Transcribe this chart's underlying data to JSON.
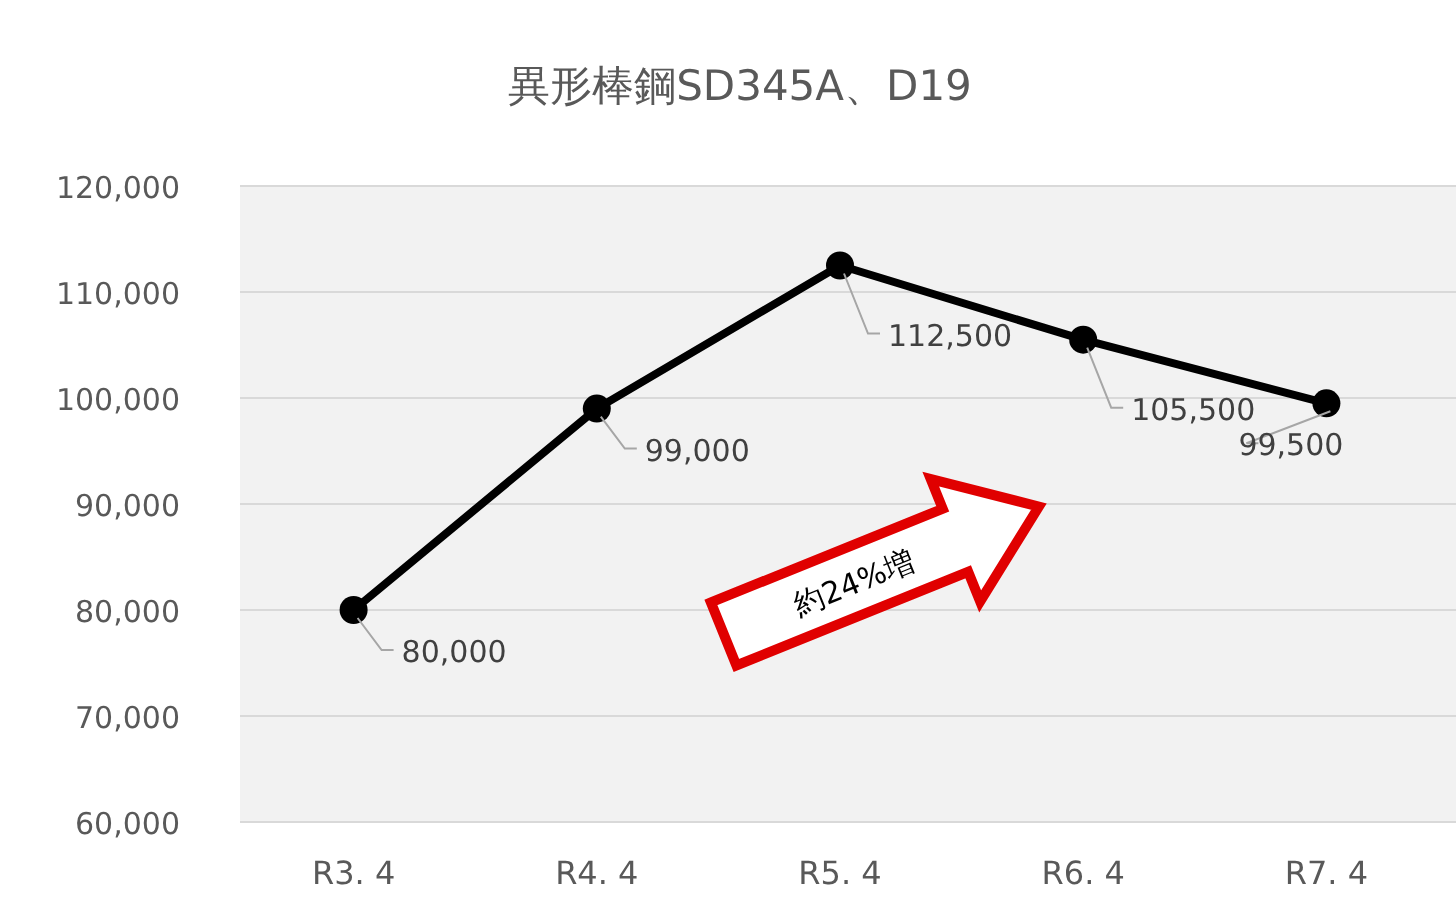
{
  "chart_data": {
    "type": "line",
    "title": "異形棒鋼SD345A、D19",
    "categories": [
      "R3. 4",
      "R4. 4",
      "R5. 4",
      "R6. 4",
      "R7. 4"
    ],
    "series": [
      {
        "color": "#000000",
        "values": [
          80000,
          99000,
          112500,
          105500,
          99500
        ],
        "value_labels": [
          "80,000",
          "99,000",
          "112,500",
          "105,500",
          "99,500"
        ]
      }
    ],
    "ylim": [
      60000,
      120000
    ],
    "yticks": [
      {
        "value": 60000,
        "label": "60,000"
      },
      {
        "value": 70000,
        "label": "70,000"
      },
      {
        "value": 80000,
        "label": "80,000"
      },
      {
        "value": 90000,
        "label": "90,000"
      },
      {
        "value": 100000,
        "label": "100,000"
      },
      {
        "value": 110000,
        "label": "110,000"
      },
      {
        "value": 120000,
        "label": "120,000"
      }
    ],
    "grid": "y",
    "marker": "circle",
    "line_style": "solid",
    "annotations": [
      "約24%増"
    ]
  }
}
